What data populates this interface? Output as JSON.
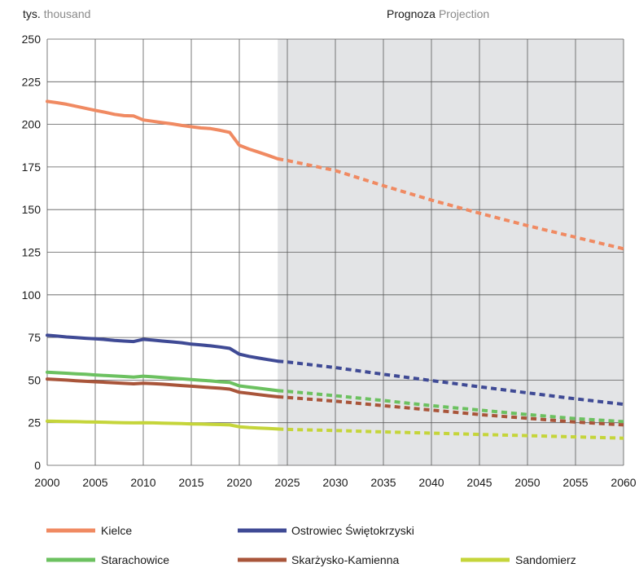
{
  "chart_data": {
    "type": "line",
    "title": "",
    "y_unit": {
      "main": "tys.",
      "sub": "thousand"
    },
    "projection_label": {
      "main": "Prognoza",
      "sub": "Projection"
    },
    "projection_start": 2024,
    "xlim": [
      2000,
      2060
    ],
    "ylim": [
      0,
      250
    ],
    "x_ticks": [
      2000,
      2005,
      2010,
      2015,
      2020,
      2025,
      2030,
      2035,
      2040,
      2045,
      2050,
      2055,
      2060
    ],
    "y_ticks": [
      0,
      25,
      50,
      75,
      100,
      125,
      150,
      175,
      200,
      225,
      250
    ],
    "grid": true,
    "legend_position": "bottom",
    "colors": {
      "projection_bg": "#e3e4e6",
      "grid": "#5a5a5a"
    },
    "series": [
      {
        "name": "Kielce",
        "color": "#f08a62",
        "actual": {
          "x": [
            2000,
            2001,
            2002,
            2003,
            2004,
            2005,
            2006,
            2007,
            2008,
            2009,
            2010,
            2011,
            2012,
            2013,
            2014,
            2015,
            2016,
            2017,
            2018,
            2019,
            2020,
            2021,
            2022,
            2023,
            2024
          ],
          "y": [
            213.5,
            212.7,
            211.8,
            210.6,
            209.4,
            208.2,
            207.1,
            205.9,
            205.1,
            204.9,
            202.6,
            201.8,
            201.0,
            200.3,
            199.4,
            198.6,
            197.9,
            197.5,
            196.5,
            195.3,
            187.7,
            185.5,
            183.7,
            181.8,
            179.8
          ]
        },
        "projection": {
          "x": [
            2024,
            2025,
            2030,
            2035,
            2040,
            2045,
            2050,
            2055,
            2060
          ],
          "y": [
            179.8,
            178.8,
            172.9,
            164.0,
            155.6,
            147.9,
            140.6,
            133.8,
            127.0
          ]
        }
      },
      {
        "name": "Ostrowiec Świętokrzyski",
        "color": "#3f4a95",
        "actual": {
          "x": [
            2000,
            2001,
            2002,
            2003,
            2004,
            2005,
            2006,
            2007,
            2008,
            2009,
            2010,
            2011,
            2012,
            2013,
            2014,
            2015,
            2016,
            2017,
            2018,
            2019,
            2020,
            2021,
            2022,
            2023,
            2024
          ],
          "y": [
            76.3,
            75.8,
            75.3,
            74.9,
            74.5,
            74.2,
            73.8,
            73.3,
            72.9,
            72.6,
            73.9,
            73.4,
            72.9,
            72.4,
            71.9,
            71.1,
            70.6,
            70.1,
            69.4,
            68.6,
            65.2,
            63.9,
            62.9,
            62.0,
            61.1
          ]
        },
        "projection": {
          "x": [
            2024,
            2025,
            2030,
            2035,
            2040,
            2045,
            2050,
            2055,
            2060
          ],
          "y": [
            61.1,
            60.6,
            57.3,
            53.4,
            49.7,
            46.1,
            42.5,
            39.0,
            35.8
          ]
        }
      },
      {
        "name": "Starachowice",
        "color": "#6cc160",
        "actual": {
          "x": [
            2000,
            2001,
            2002,
            2003,
            2004,
            2005,
            2006,
            2007,
            2008,
            2009,
            2010,
            2011,
            2012,
            2013,
            2014,
            2015,
            2016,
            2017,
            2018,
            2019,
            2020,
            2021,
            2022,
            2023,
            2024
          ],
          "y": [
            54.6,
            54.3,
            54.0,
            53.7,
            53.4,
            53.0,
            52.7,
            52.4,
            52.1,
            51.7,
            52.3,
            51.9,
            51.5,
            51.1,
            50.7,
            50.3,
            49.9,
            49.5,
            49.0,
            48.6,
            46.6,
            45.9,
            45.2,
            44.5,
            43.8
          ]
        },
        "projection": {
          "x": [
            2024,
            2025,
            2030,
            2035,
            2040,
            2045,
            2050,
            2055,
            2060
          ],
          "y": [
            43.8,
            43.4,
            40.8,
            38.0,
            35.0,
            32.4,
            29.8,
            27.4,
            25.6
          ]
        }
      },
      {
        "name": "Skarżysko-Kamienna",
        "color": "#a9553a",
        "actual": {
          "x": [
            2000,
            2001,
            2002,
            2003,
            2004,
            2005,
            2006,
            2007,
            2008,
            2009,
            2010,
            2011,
            2012,
            2013,
            2014,
            2015,
            2016,
            2017,
            2018,
            2019,
            2020,
            2021,
            2022,
            2023,
            2024
          ],
          "y": [
            50.6,
            50.3,
            50.0,
            49.6,
            49.3,
            49.0,
            48.7,
            48.4,
            48.1,
            47.8,
            48.2,
            47.9,
            47.6,
            47.2,
            46.8,
            46.4,
            46.0,
            45.6,
            45.2,
            44.7,
            42.9,
            42.2,
            41.5,
            40.8,
            40.2
          ]
        },
        "projection": {
          "x": [
            2024,
            2025,
            2030,
            2035,
            2040,
            2045,
            2050,
            2055,
            2060
          ],
          "y": [
            40.2,
            39.8,
            37.6,
            35.0,
            32.4,
            29.8,
            27.6,
            25.4,
            23.7
          ]
        }
      },
      {
        "name": "Sandomierz",
        "color": "#c5d53a",
        "actual": {
          "x": [
            2000,
            2001,
            2002,
            2003,
            2004,
            2005,
            2006,
            2007,
            2008,
            2009,
            2010,
            2011,
            2012,
            2013,
            2014,
            2015,
            2016,
            2017,
            2018,
            2019,
            2020,
            2021,
            2022,
            2023,
            2024
          ],
          "y": [
            25.9,
            25.8,
            25.7,
            25.6,
            25.5,
            25.4,
            25.3,
            25.1,
            25.0,
            24.9,
            25.0,
            24.9,
            24.7,
            24.6,
            24.5,
            24.3,
            24.2,
            24.0,
            23.9,
            23.7,
            22.6,
            22.2,
            21.9,
            21.6,
            21.3
          ]
        },
        "projection": {
          "x": [
            2024,
            2025,
            2030,
            2035,
            2040,
            2045,
            2050,
            2055,
            2060
          ],
          "y": [
            21.3,
            21.1,
            20.4,
            19.6,
            18.9,
            18.1,
            17.4,
            16.7,
            15.9
          ]
        }
      }
    ]
  }
}
